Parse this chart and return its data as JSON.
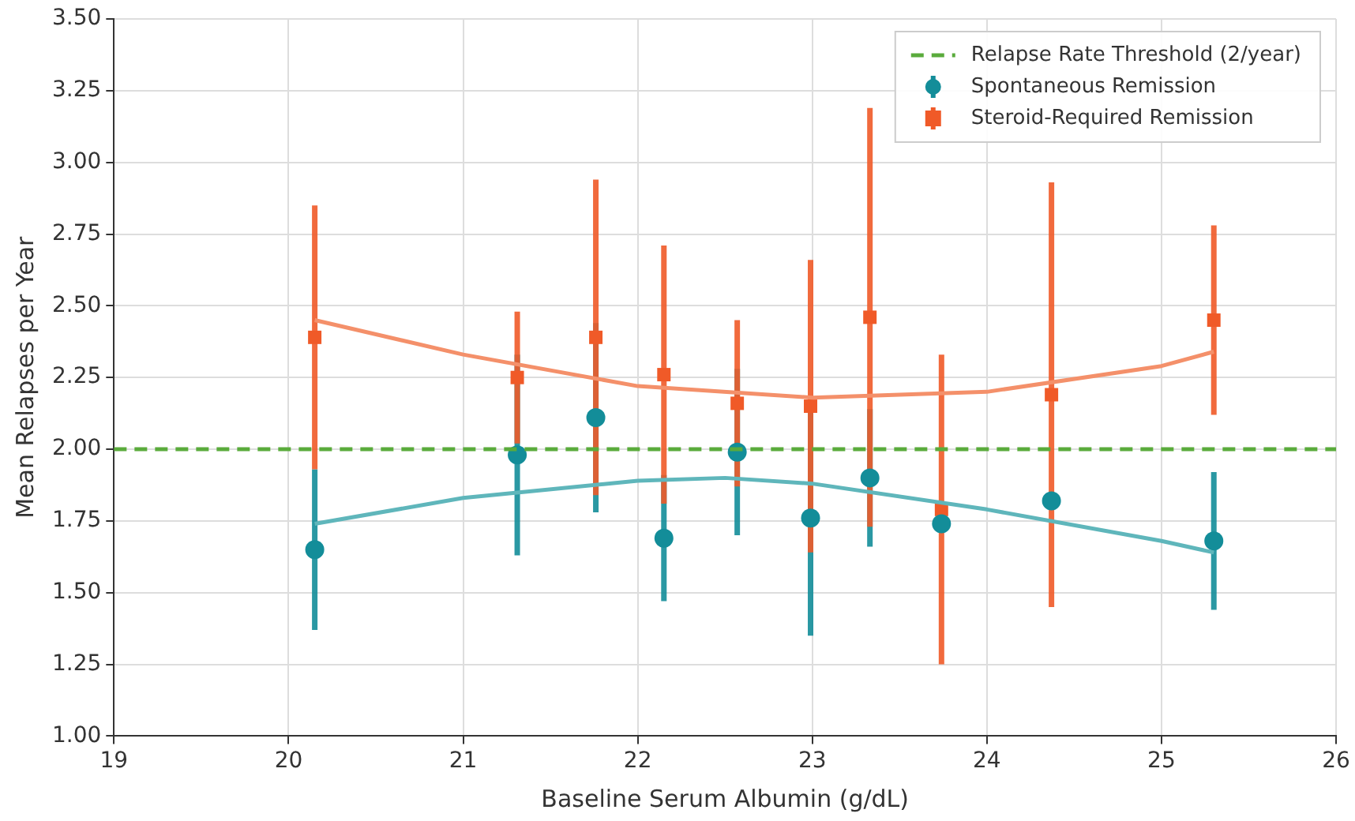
{
  "chart_data": {
    "type": "scatter",
    "xlabel": "Baseline Serum Albumin (g/dL)",
    "ylabel": "Mean Relapses per Year",
    "xlim": [
      19,
      26
    ],
    "xticks": [
      19,
      20,
      21,
      22,
      23,
      24,
      25,
      26
    ],
    "ylim": [
      1,
      3.5
    ],
    "yticks": [
      {
        "value": 1,
        "label": "1.00"
      },
      {
        "value": 1.25,
        "label": "1.25"
      },
      {
        "value": 1.5,
        "label": "1.50"
      },
      {
        "value": 1.75,
        "label": "1.75"
      },
      {
        "value": 2,
        "label": "2.00"
      },
      {
        "value": 2.25,
        "label": "2.25"
      },
      {
        "value": 2.5,
        "label": "2.50"
      },
      {
        "value": 2.75,
        "label": "2.75"
      },
      {
        "value": 3,
        "label": "3.00"
      },
      {
        "value": 3.25,
        "label": "3.25"
      },
      {
        "value": 3.5,
        "label": "3.50"
      }
    ],
    "grid": true,
    "legend": "top right",
    "ref_lines": [
      {
        "axis": "y",
        "value": 2,
        "label": "Relapse Rate Threshold (2/year)",
        "color": "#5aab3c",
        "line_style": "dashed"
      }
    ],
    "series": [
      {
        "type": "line",
        "color": "#5fb6bb",
        "marker": "none",
        "x": [
          20.15,
          21,
          22,
          22.5,
          23,
          24,
          25,
          25.3
        ],
        "values": [
          1.74,
          1.83,
          1.89,
          1.9,
          1.88,
          1.79,
          1.68,
          1.64
        ]
      },
      {
        "type": "line",
        "color": "#f4906a",
        "marker": "none",
        "x": [
          20.15,
          21,
          22,
          23,
          24,
          25,
          25.3
        ],
        "values": [
          2.45,
          2.33,
          2.22,
          2.18,
          2.2,
          2.29,
          2.34
        ]
      },
      {
        "name": "Spontaneous Remission",
        "color": "#138d99",
        "marker": "circle",
        "x": [
          20.15,
          21.31,
          21.76,
          22.15,
          22.57,
          22.99,
          23.33,
          23.74,
          24.37,
          25.3
        ],
        "values": [
          1.65,
          1.98,
          2.11,
          1.69,
          1.99,
          1.76,
          1.9,
          1.74,
          1.82,
          1.68
        ],
        "errors": [
          0.28,
          0.35,
          0.33,
          0.22,
          0.29,
          0.41,
          0.24,
          null,
          null,
          0.24
        ]
      },
      {
        "name": "Steroid-Required Remission",
        "color": "#f05a28",
        "marker": "square",
        "x": [
          20.15,
          21.31,
          21.76,
          22.15,
          22.57,
          22.99,
          23.33,
          23.74,
          24.37,
          25.3
        ],
        "values": [
          2.39,
          2.25,
          2.39,
          2.26,
          2.16,
          2.15,
          2.46,
          1.79,
          2.19,
          2.45
        ],
        "errors": [
          0.46,
          0.23,
          0.55,
          0.45,
          0.29,
          0.51,
          0.73,
          0.54,
          0.74,
          0.33
        ]
      }
    ]
  }
}
